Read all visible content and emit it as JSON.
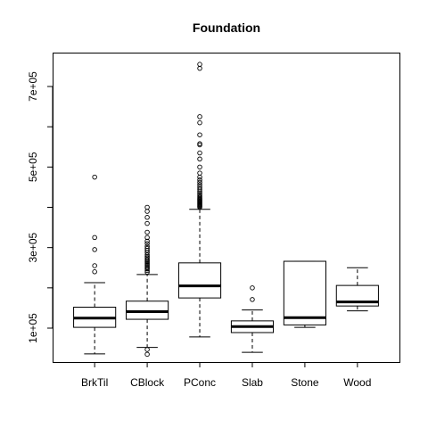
{
  "chart_data": {
    "type": "boxplot",
    "title": "Foundation",
    "xlabel": "",
    "ylabel": "",
    "ylim": [
      0,
      780000
    ],
    "y_ticks": [
      {
        "value": 100000,
        "label": "1e+05"
      },
      {
        "value": 300000,
        "label": "3e+05"
      },
      {
        "value": 500000,
        "label": "5e+05"
      },
      {
        "value": 700000,
        "label": "7e+05"
      }
    ],
    "minor_y_ticks": [
      200000,
      400000,
      600000
    ],
    "categories": [
      "BrkTil",
      "CBlock",
      "PConc",
      "Slab",
      "Stone",
      "Wood"
    ],
    "boxes": [
      {
        "category": "BrkTil",
        "min": 36000,
        "q1": 102000,
        "median": 125000,
        "q3": 152000,
        "max": 213000,
        "outliers": [
          240000,
          255000,
          295000,
          325000,
          475000
        ]
      },
      {
        "category": "CBlock",
        "min": 52000,
        "q1": 122000,
        "median": 141000,
        "q3": 167000,
        "max": 233000,
        "outliers": [
          35000,
          47000,
          239000,
          243000,
          247000,
          250000,
          253000,
          256000,
          259000,
          262000,
          265000,
          268000,
          271000,
          275000,
          278000,
          282000,
          288000,
          293000,
          298000,
          303000,
          310000,
          316000,
          325000,
          338000,
          360000,
          375000,
          390000,
          400000
        ]
      },
      {
        "category": "PConc",
        "min": 78000,
        "q1": 175000,
        "median": 205000,
        "q3": 262000,
        "max": 395000,
        "outliers": [
          400000,
          402000,
          404000,
          406000,
          408000,
          410000,
          412000,
          414000,
          416000,
          418000,
          420000,
          422000,
          425000,
          428000,
          432000,
          436000,
          440000,
          445000,
          450000,
          456000,
          462000,
          468000,
          475000,
          485000,
          500000,
          520000,
          535000,
          555000,
          558000,
          580000,
          610000,
          625000,
          745000,
          755000
        ]
      },
      {
        "category": "Slab",
        "min": 40000,
        "q1": 89000,
        "median": 104000,
        "q3": 118000,
        "max": 145000,
        "outliers": [
          171000,
          200000
        ]
      },
      {
        "category": "Stone",
        "min": 102000,
        "q1": 108000,
        "median": 126000,
        "q3": 266000,
        "max": 266000,
        "outliers": []
      },
      {
        "category": "Wood",
        "min": 143000,
        "q1": 155000,
        "median": 165000,
        "q3": 206000,
        "max": 250000,
        "outliers": []
      }
    ]
  }
}
